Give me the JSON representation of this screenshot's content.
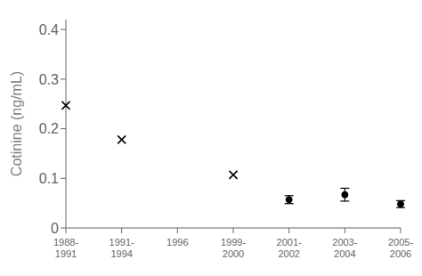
{
  "chart_data": {
    "type": "scatter",
    "categories": [
      "1988-\n1991",
      "1991-\n1994",
      "1996",
      "1999-\n2000",
      "2001-\n2002",
      "2003-\n2004",
      "2005-\n2006"
    ],
    "series": [
      {
        "marker": "x",
        "color": "black",
        "values": [
          0.247,
          0.178,
          null,
          0.107,
          null,
          null,
          null
        ]
      },
      {
        "marker": "o",
        "color": "black",
        "values": [
          null,
          null,
          null,
          null,
          0.057,
          0.067,
          0.048
        ],
        "error_lower": [
          null,
          null,
          null,
          null,
          0.008,
          0.013,
          0.007
        ],
        "error_upper": [
          null,
          null,
          null,
          null,
          0.008,
          0.013,
          0.007
        ]
      }
    ],
    "ylabel": "Cotinine (ng/mL)",
    "ylim": [
      0,
      0.42
    ],
    "yticks": [
      0,
      0.1,
      0.2,
      0.3,
      0.4
    ],
    "grid": false
  }
}
